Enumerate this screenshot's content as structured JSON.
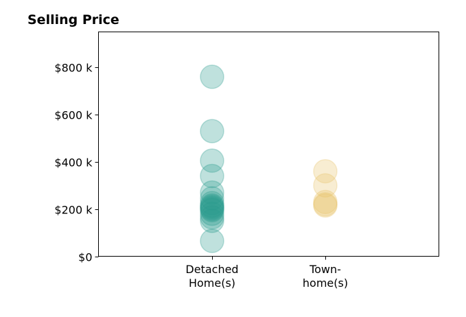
{
  "chart_data": {
    "type": "scatter",
    "title": "Selling Price",
    "xlabel": "",
    "ylabel": "",
    "categories": [
      {
        "lines": [
          "Detached",
          "Home(s)"
        ]
      },
      {
        "lines": [
          "Town-",
          "home(s)"
        ]
      }
    ],
    "ylim": [
      0,
      950000
    ],
    "yticks": [
      {
        "value": 0,
        "label": "$0"
      },
      {
        "value": 200000,
        "label": "$200 k"
      },
      {
        "value": 400000,
        "label": "$400 k"
      },
      {
        "value": 600000,
        "label": "$600 k"
      },
      {
        "value": 800000,
        "label": "$800 k"
      }
    ],
    "grid": false,
    "series": [
      {
        "category_index": 0,
        "color": "#2a9d8f",
        "values": [
          760000,
          530000,
          405000,
          340000,
          270000,
          245000,
          225000,
          215000,
          210000,
          205000,
          200000,
          195000,
          180000,
          165000,
          150000,
          65000
        ]
      },
      {
        "category_index": 1,
        "color": "#e9c46a",
        "values": [
          360000,
          300000,
          230000,
          220000,
          215000
        ]
      }
    ]
  }
}
